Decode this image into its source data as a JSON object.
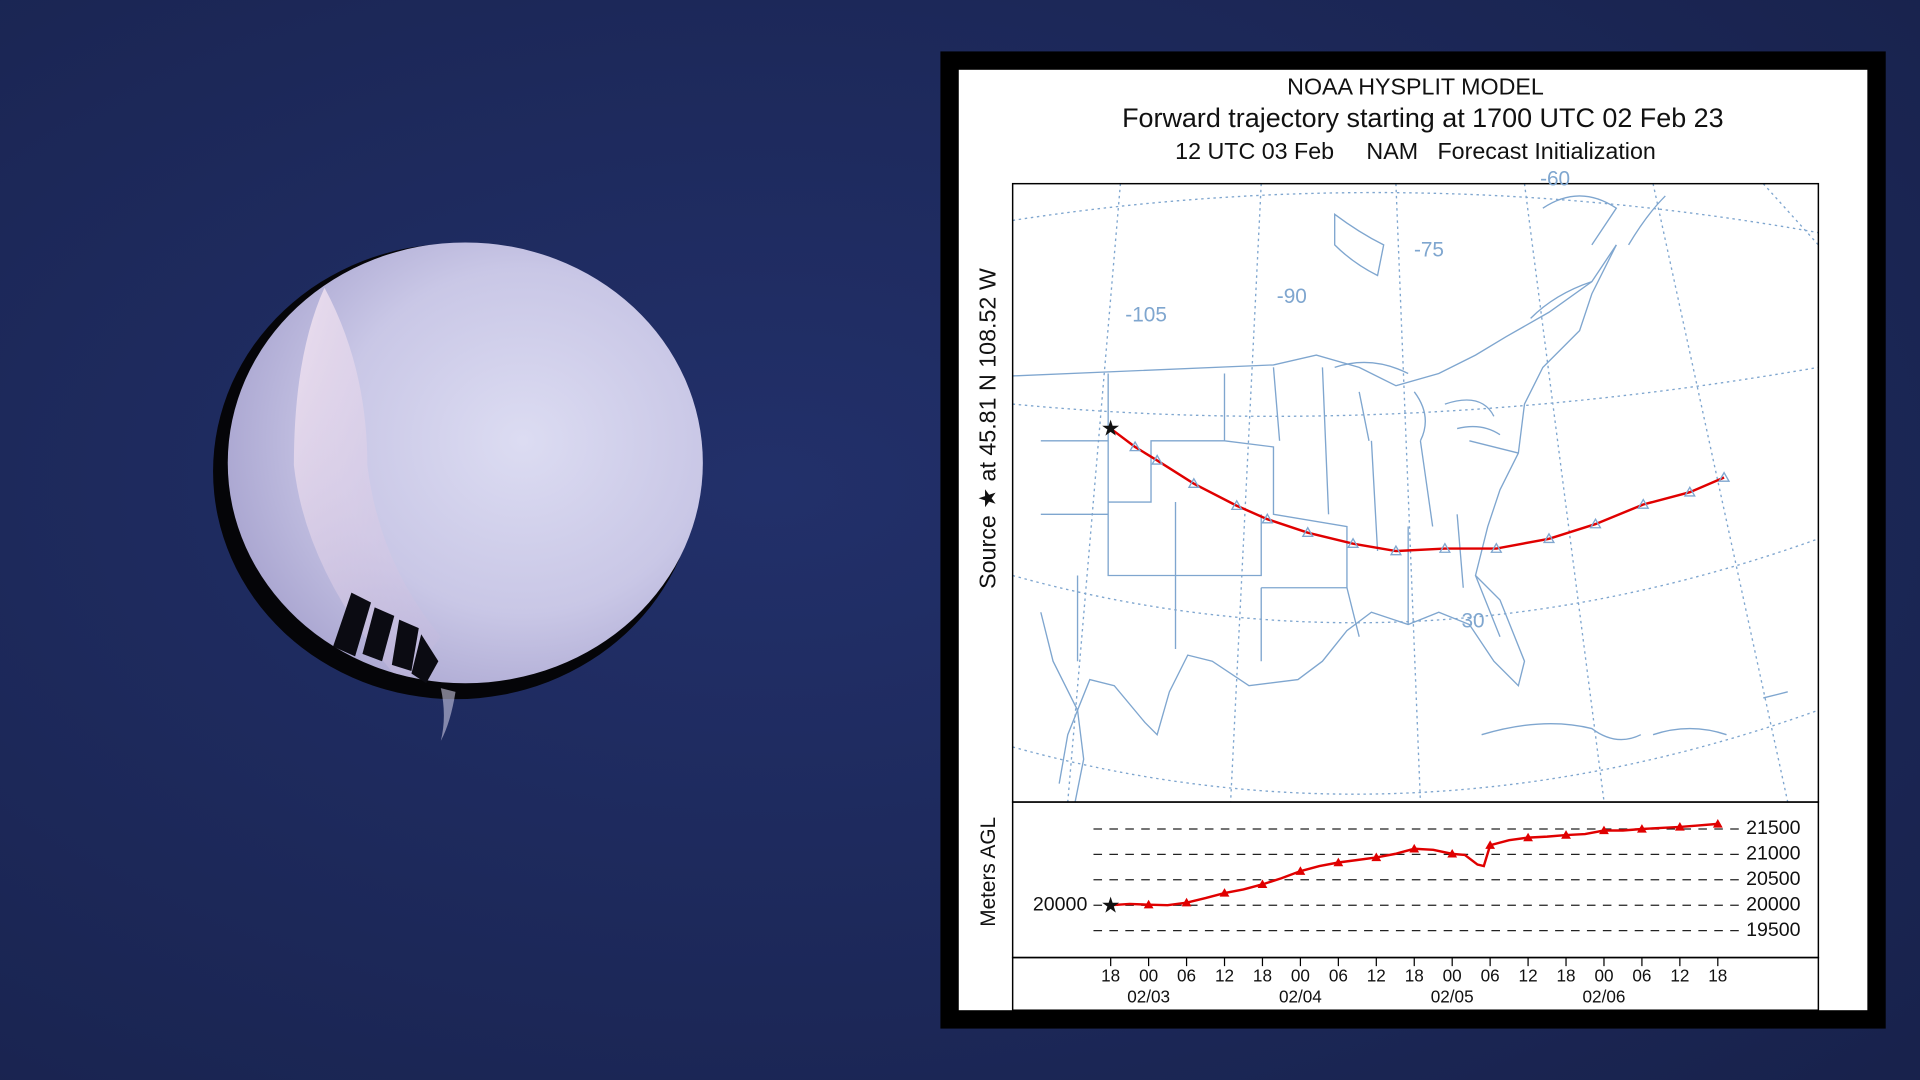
{
  "header": {
    "title": "NOAA HYSPLIT MODEL",
    "subtitle": "Forward trajectory starting at 1700 UTC 02 Feb 23",
    "caption": "12 UTC 03 Feb     NAM   Forecast Initialization"
  },
  "map": {
    "source_label": "Source ★ at 45.81 N 108.52 W",
    "labels": [
      "-60",
      "-75",
      "-90",
      "-105",
      "30"
    ]
  },
  "chart_data": {
    "type": "line",
    "y_label": "Meters AGL",
    "x": [
      0,
      3,
      6,
      9,
      12,
      15,
      18,
      21,
      24,
      27,
      30,
      33,
      36,
      39,
      42,
      45,
      48,
      51,
      54,
      56,
      58,
      59,
      60,
      63,
      66,
      69,
      72,
      75,
      78,
      81,
      84,
      87,
      90,
      93,
      96
    ],
    "series": [
      {
        "color": "#e00000",
        "values": [
          20000,
          20025,
          20010,
          20000,
          20050,
          20140,
          20240,
          20310,
          20410,
          20530,
          20670,
          20770,
          20840,
          20890,
          20940,
          21010,
          21110,
          21090,
          21010,
          20990,
          20800,
          20770,
          21180,
          21280,
          21330,
          21350,
          21380,
          21400,
          21470,
          21470,
          21500,
          21520,
          21540,
          21570,
          21600
        ]
      }
    ],
    "xlim": [
      -15.5,
      111.9
    ],
    "ylim": [
      18970,
      22030
    ],
    "xticks": [
      {
        "value": 0,
        "label": "18"
      },
      {
        "value": 6,
        "label": "00"
      },
      {
        "value": 12,
        "label": "06"
      },
      {
        "value": 18,
        "label": "12"
      },
      {
        "value": 24,
        "label": "18"
      },
      {
        "value": 30,
        "label": "00"
      },
      {
        "value": 36,
        "label": "06"
      },
      {
        "value": 42,
        "label": "12"
      },
      {
        "value": 48,
        "label": "18"
      },
      {
        "value": 54,
        "label": "00"
      },
      {
        "value": 60,
        "label": "06"
      },
      {
        "value": 66,
        "label": "12"
      },
      {
        "value": 72,
        "label": "18"
      },
      {
        "value": 78,
        "label": "00"
      },
      {
        "value": 84,
        "label": "06"
      },
      {
        "value": 90,
        "label": "12"
      },
      {
        "value": 96,
        "label": "18"
      }
    ],
    "date_labels": [
      {
        "value": 6,
        "label": "02/03"
      },
      {
        "value": 30,
        "label": "02/04"
      },
      {
        "value": 54,
        "label": "02/05"
      },
      {
        "value": 78,
        "label": "02/06"
      }
    ],
    "yticks": [
      19500,
      20000,
      20500,
      21000,
      21500
    ],
    "start_value": 20000
  }
}
